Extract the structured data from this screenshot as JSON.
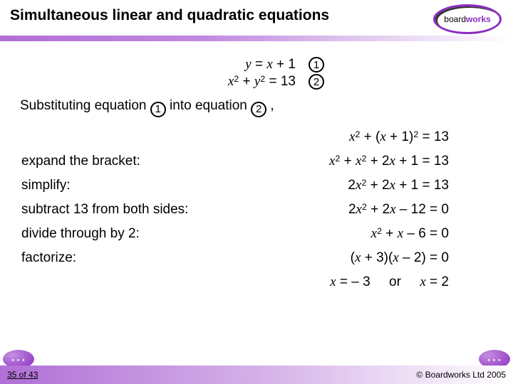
{
  "header": {
    "title": "Simultaneous linear and quadratic equations",
    "logo_prefix": "board",
    "logo_suffix": "works",
    "bar_gradient_start": "#b06fd6",
    "accent": "#8a2bc2"
  },
  "equations": {
    "system": [
      {
        "expr_html": "<span class='ital'>y</span> = <span class='ital'>x</span> + 1",
        "tag": "1"
      },
      {
        "expr_html": "<span class='ital'>x</span><sup>2</sup> + <span class='ital'>y</span><sup>2</sup> = 13",
        "tag": "2"
      }
    ],
    "substitution_text_parts": {
      "a": "Substituting equation ",
      "b": " into equation ",
      "c": " ,",
      "tag1": "1",
      "tag2": "2"
    },
    "steps": [
      {
        "label": "",
        "eq_html": "<span class='ital'>x</span><sup>2</sup> + (<span class='ital'>x</span> + 1)<sup>2</sup> = 13"
      },
      {
        "label": "expand the bracket:",
        "eq_html": "<span class='ital'>x</span><sup>2</sup> + <span class='ital'>x</span><sup>2</sup> + 2<span class='ital'>x</span> + 1 = 13"
      },
      {
        "label": "simplify:",
        "eq_html": "2<span class='ital'>x</span><sup>2</sup> + 2<span class='ital'>x</span> + 1 = 13"
      },
      {
        "label": "subtract 13 from both sides:",
        "eq_html": "2<span class='ital'>x</span><sup>2</sup> + 2<span class='ital'>x</span> – 12 = 0"
      },
      {
        "label": "divide through by 2:",
        "eq_html": "<span class='ital'>x</span><sup>2</sup> + <span class='ital'>x</span> – 6 = 0"
      },
      {
        "label": "factorize:",
        "eq_html": "(<span class='ital'>x</span> + 3)(<span class='ital'>x</span> – 2) = 0"
      }
    ],
    "solution_html": "<span class='ital'>x</span> = – 3 &nbsp;&nbsp;&nbsp; or &nbsp;&nbsp;&nbsp; <span class='ital'>x</span> = 2"
  },
  "footer": {
    "page": "35 of 43",
    "copyright": "© Boardworks Ltd 2005"
  }
}
